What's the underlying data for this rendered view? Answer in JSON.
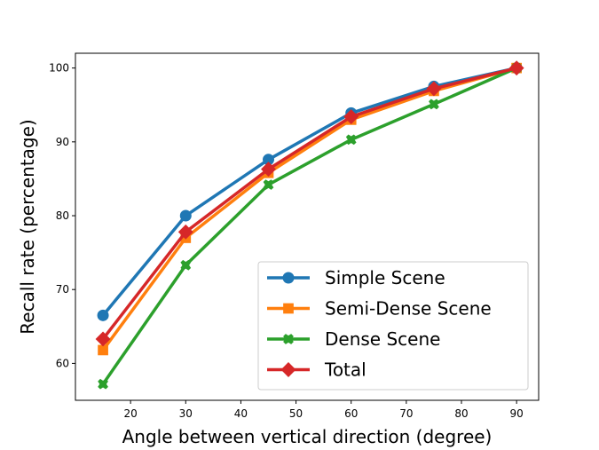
{
  "chart_data": {
    "type": "line",
    "title": "",
    "xlabel": "Angle between vertical direction (degree)",
    "ylabel": "Recall rate (percentage)",
    "xlim": [
      10,
      94
    ],
    "ylim": [
      55,
      102
    ],
    "xticks": [
      20,
      30,
      40,
      50,
      60,
      70,
      80,
      90
    ],
    "yticks": [
      60,
      70,
      80,
      90,
      100
    ],
    "grid": false,
    "legend_position": "bottom-right",
    "x": [
      15,
      30,
      45,
      60,
      75,
      90
    ],
    "series": [
      {
        "name": "Simple Scene",
        "values": [
          66.5,
          80.0,
          87.6,
          93.9,
          97.5,
          100.0
        ],
        "color": "#1f77b4",
        "marker": "circle"
      },
      {
        "name": "Semi-Dense Scene",
        "values": [
          61.8,
          77.0,
          85.8,
          93.0,
          96.9,
          100.0
        ],
        "color": "#ff7f0e",
        "marker": "square"
      },
      {
        "name": "Dense Scene",
        "values": [
          57.2,
          73.3,
          84.2,
          90.3,
          95.1,
          100.0
        ],
        "color": "#2ca02c",
        "marker": "x"
      },
      {
        "name": "Total",
        "values": [
          63.3,
          77.8,
          86.3,
          93.4,
          97.2,
          100.0
        ],
        "color": "#d62728",
        "marker": "diamond"
      }
    ]
  }
}
